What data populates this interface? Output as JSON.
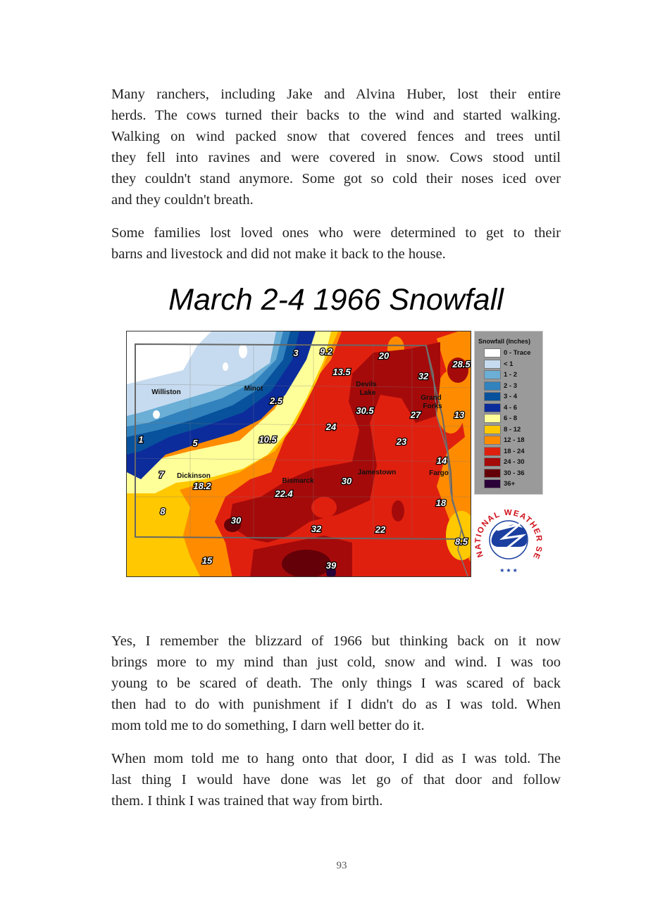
{
  "paragraphs": [
    {
      "lines": [
        "Many ranchers, including Jake and Alvina Huber, lost their entire",
        "herds. The cows turned their backs to the wind and started walking.",
        "Walking on wind packed snow that covered fences and trees until",
        "they fell into ravines and were covered in snow. Cows stood until",
        "they couldn't stand anymore. Some got so cold their noses iced over",
        "and they couldn't breath."
      ]
    },
    {
      "lines": [
        "Some families lost loved ones who were determined to get to their",
        "barns and livestock and did not make it back to the house."
      ]
    },
    {
      "lines": [
        "Yes, I remember the blizzard of 1966 but thinking back on it now",
        "brings more to my mind than just cold, snow and wind.  I was too",
        "young to be scared of death.  The only things I was scared of back",
        "then had to do with punishment if I didn't do as I was told. When",
        "mom told me to do something, I darn well better do it."
      ]
    },
    {
      "lines": [
        "When mom told me to hang onto that door, I did as I was told.  The",
        "last thing I would have done was let go of that door and follow",
        "them.  I think I was trained that way from birth."
      ]
    }
  ],
  "figure": {
    "title": "March 2-4 1966 Snowfall",
    "cities": [
      "Williston",
      "Minot",
      "Devils",
      "Lake",
      "Grand",
      "Forks",
      "Dickinson",
      "Bismarck",
      "Jamestown",
      "Fargo"
    ],
    "amounts": [
      "3",
      "9.2",
      "20",
      "13.5",
      "28.5",
      "32",
      "30.5",
      "2.5",
      "27",
      "13",
      "24",
      "1",
      "5",
      "10.5",
      "23",
      "14",
      "7",
      "18.2",
      "30",
      "22.4",
      "18",
      "8",
      "30",
      "32",
      "22",
      "8.5",
      "15",
      "39"
    ],
    "legend": {
      "title": "Snowfall (Inches)",
      "items": [
        {
          "label": "0 - Trace",
          "color": "#ffffff"
        },
        {
          "label": "< 1",
          "color": "#c6dbef"
        },
        {
          "label": "1 - 2",
          "color": "#6baed6"
        },
        {
          "label": "2 - 3",
          "color": "#3182bd"
        },
        {
          "label": "3 - 4",
          "color": "#08519c"
        },
        {
          "label": "4 - 6",
          "color": "#0c2c9c"
        },
        {
          "label": "6 - 8",
          "color": "#ffff99"
        },
        {
          "label": "8 - 12",
          "color": "#ffc800"
        },
        {
          "label": "12 - 18",
          "color": "#ff8c00"
        },
        {
          "label": "18 - 24",
          "color": "#e0200f"
        },
        {
          "label": "24 - 30",
          "color": "#a50a0a"
        },
        {
          "label": "30 - 36",
          "color": "#640008"
        },
        {
          "label": "36+",
          "color": "#2a0038"
        }
      ]
    },
    "logo_text": "NATIONAL WEATHER SERVICE"
  },
  "page_number": "93"
}
